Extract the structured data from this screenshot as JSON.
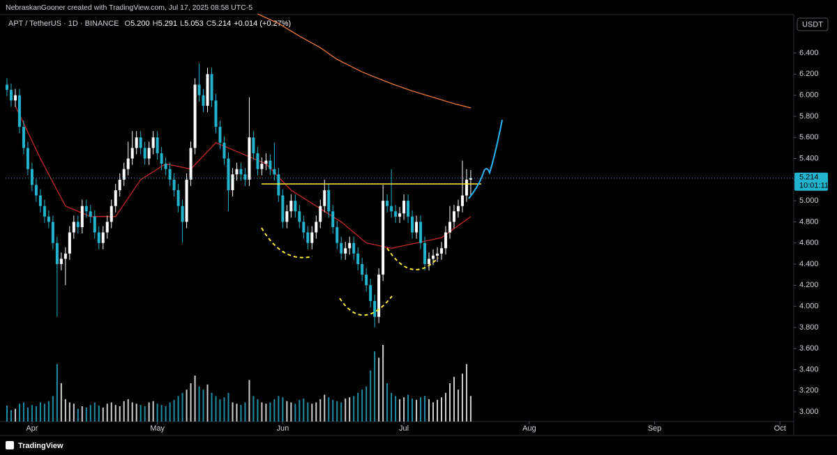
{
  "chart_data": {
    "type": "candlestick",
    "attribution": "NebraskanGooner created with TradingView.com, Jul 17, 2025 08:58 UTC-5",
    "symbol": "APT / TetherUS · 1D · BINANCE",
    "legend": [
      {
        "key": "O",
        "value": "5.200"
      },
      {
        "key": "H",
        "value": "5.291"
      },
      {
        "key": "L",
        "value": "5.053"
      },
      {
        "key": "C",
        "value": "5.214"
      }
    ],
    "change": "+0.014 (+0.27%)",
    "currency": "USDT",
    "countdown": "10:01:11",
    "brand": "TradingView",
    "up_color": "#ffffff",
    "down_color": "#22b3cf",
    "xlim": [
      -0.33,
      187.8
    ],
    "xticks": [
      {
        "value": 6,
        "label": "Apr"
      },
      {
        "value": 36,
        "label": "May"
      },
      {
        "value": 66,
        "label": "Jun"
      },
      {
        "value": 95,
        "label": "Jul"
      },
      {
        "value": 125,
        "label": "Aug"
      },
      {
        "value": 155,
        "label": "Sep"
      },
      {
        "value": 185,
        "label": "Oct"
      }
    ],
    "ylim": [
      2.908,
      6.77
    ],
    "yticks": [
      {
        "value": 3.0,
        "label": "3.000"
      },
      {
        "value": 3.2,
        "label": "3.200"
      },
      {
        "value": 3.4,
        "label": "3.400"
      },
      {
        "value": 3.6,
        "label": "3.600"
      },
      {
        "value": 3.8,
        "label": "3.800"
      },
      {
        "value": 4.0,
        "label": "4.000"
      },
      {
        "value": 4.2,
        "label": "4.200"
      },
      {
        "value": 4.4,
        "label": "4.400"
      },
      {
        "value": 4.6,
        "label": "4.600"
      },
      {
        "value": 4.8,
        "label": "4.800"
      },
      {
        "value": 5.0,
        "label": "5.000"
      },
      {
        "value": 5.2,
        "label": "5.200"
      },
      {
        "value": 5.4,
        "label": "5.400"
      },
      {
        "value": 5.6,
        "label": "5.600"
      },
      {
        "value": 5.8,
        "label": "5.800"
      },
      {
        "value": 6.0,
        "label": "6.000"
      },
      {
        "value": 6.2,
        "label": "6.200"
      },
      {
        "value": 6.4,
        "label": "6.400"
      }
    ],
    "candles": [
      [
        6.1,
        6.16,
        5.99,
        6.05
      ],
      [
        6.05,
        6.11,
        5.89,
        5.95
      ],
      [
        5.95,
        6.06,
        5.89,
        6.0
      ],
      [
        6.0,
        6.06,
        5.64,
        5.7
      ],
      [
        5.7,
        5.76,
        5.44,
        5.5
      ],
      [
        5.5,
        5.56,
        5.24,
        5.3
      ],
      [
        5.3,
        5.36,
        5.09,
        5.15
      ],
      [
        5.15,
        5.21,
        4.99,
        5.05
      ],
      [
        5.05,
        5.11,
        4.89,
        4.95
      ],
      [
        4.95,
        5.01,
        4.79,
        4.85
      ],
      [
        4.85,
        4.91,
        4.74,
        4.8
      ],
      [
        4.8,
        4.86,
        4.54,
        4.6
      ],
      [
        4.6,
        4.66,
        3.9,
        4.4
      ],
      [
        4.4,
        4.51,
        4.34,
        4.45
      ],
      [
        4.45,
        4.56,
        4.2,
        4.5
      ],
      [
        4.5,
        4.76,
        4.44,
        4.7
      ],
      [
        4.7,
        4.86,
        4.64,
        4.8
      ],
      [
        4.8,
        4.86,
        4.69,
        4.75
      ],
      [
        4.75,
        5.01,
        4.69,
        4.95
      ],
      [
        4.95,
        5.01,
        4.84,
        4.9
      ],
      [
        4.9,
        4.96,
        4.79,
        4.85
      ],
      [
        4.85,
        4.91,
        4.64,
        4.7
      ],
      [
        4.7,
        4.76,
        4.54,
        4.6
      ],
      [
        4.6,
        4.76,
        4.54,
        4.7
      ],
      [
        4.7,
        4.86,
        4.64,
        4.8
      ],
      [
        4.8,
        5.01,
        4.74,
        4.95
      ],
      [
        4.95,
        5.16,
        4.89,
        5.1
      ],
      [
        5.1,
        5.26,
        5.04,
        5.2
      ],
      [
        5.2,
        5.36,
        5.14,
        5.3
      ],
      [
        5.3,
        5.56,
        5.24,
        5.4
      ],
      [
        5.4,
        5.66,
        5.34,
        5.5
      ],
      [
        5.5,
        5.66,
        5.44,
        5.6
      ],
      [
        5.6,
        5.66,
        5.44,
        5.5
      ],
      [
        5.5,
        5.56,
        5.34,
        5.4
      ],
      [
        5.4,
        5.56,
        5.34,
        5.5
      ],
      [
        5.5,
        5.66,
        5.44,
        5.6
      ],
      [
        5.6,
        5.66,
        5.39,
        5.45
      ],
      [
        5.45,
        5.51,
        5.29,
        5.35
      ],
      [
        5.35,
        5.41,
        5.24,
        5.3
      ],
      [
        5.3,
        5.36,
        5.14,
        5.2
      ],
      [
        5.2,
        5.26,
        5.04,
        5.1
      ],
      [
        5.1,
        5.16,
        4.89,
        4.95
      ],
      [
        4.95,
        5.01,
        4.6,
        4.8
      ],
      [
        4.8,
        5.26,
        4.74,
        5.2
      ],
      [
        5.2,
        5.56,
        5.14,
        5.5
      ],
      [
        5.5,
        6.16,
        5.44,
        6.1
      ],
      [
        6.1,
        6.3,
        5.94,
        6.0
      ],
      [
        6.0,
        6.06,
        5.84,
        5.9
      ],
      [
        5.9,
        6.26,
        5.84,
        6.2
      ],
      [
        6.2,
        6.26,
        5.89,
        5.95
      ],
      [
        5.95,
        6.01,
        5.64,
        5.7
      ],
      [
        5.7,
        5.76,
        5.49,
        5.55
      ],
      [
        5.55,
        5.61,
        5.34,
        5.4
      ],
      [
        5.4,
        5.46,
        4.9,
        5.1
      ],
      [
        5.1,
        5.31,
        5.04,
        5.25
      ],
      [
        5.25,
        5.36,
        5.19,
        5.3
      ],
      [
        5.3,
        5.36,
        5.19,
        5.25
      ],
      [
        5.25,
        5.31,
        5.14,
        5.2
      ],
      [
        5.2,
        5.98,
        5.14,
        5.6
      ],
      [
        5.6,
        5.66,
        5.39,
        5.45
      ],
      [
        5.45,
        5.51,
        5.24,
        5.3
      ],
      [
        5.3,
        5.41,
        5.24,
        5.35
      ],
      [
        5.35,
        5.45,
        5.29,
        5.38
      ],
      [
        5.38,
        5.44,
        5.24,
        5.3
      ],
      [
        5.3,
        5.55,
        5.19,
        5.25
      ],
      [
        5.25,
        5.31,
        4.99,
        5.05
      ],
      [
        5.05,
        5.11,
        4.74,
        4.8
      ],
      [
        4.8,
        4.96,
        4.74,
        4.9
      ],
      [
        4.9,
        5.06,
        4.84,
        5.0
      ],
      [
        5.0,
        5.06,
        4.84,
        4.9
      ],
      [
        4.9,
        4.96,
        4.74,
        4.8
      ],
      [
        4.8,
        4.86,
        4.64,
        4.7
      ],
      [
        4.7,
        4.76,
        4.54,
        4.6
      ],
      [
        4.6,
        4.76,
        4.54,
        4.7
      ],
      [
        4.7,
        4.86,
        4.64,
        4.8
      ],
      [
        4.8,
        5.01,
        4.74,
        4.95
      ],
      [
        4.95,
        5.2,
        4.89,
        5.1
      ],
      [
        5.1,
        5.16,
        4.84,
        4.9
      ],
      [
        4.9,
        4.96,
        4.69,
        4.75
      ],
      [
        4.75,
        4.81,
        4.54,
        4.6
      ],
      [
        4.6,
        4.66,
        4.44,
        4.5
      ],
      [
        4.5,
        4.61,
        4.44,
        4.55
      ],
      [
        4.55,
        4.66,
        4.49,
        4.6
      ],
      [
        4.6,
        4.66,
        4.44,
        4.5
      ],
      [
        4.5,
        4.56,
        4.34,
        4.4
      ],
      [
        4.4,
        4.46,
        4.24,
        4.3
      ],
      [
        4.3,
        4.36,
        4.14,
        4.2
      ],
      [
        4.2,
        4.26,
        3.99,
        4.05
      ],
      [
        4.05,
        4.11,
        3.8,
        3.9
      ],
      [
        3.9,
        4.36,
        3.84,
        4.3
      ],
      [
        4.3,
        5.15,
        4.24,
        5.0
      ],
      [
        5.0,
        5.06,
        4.89,
        4.95
      ],
      [
        4.95,
        5.3,
        4.84,
        4.9
      ],
      [
        4.9,
        4.96,
        4.79,
        4.85
      ],
      [
        4.85,
        4.94,
        4.79,
        4.88
      ],
      [
        4.88,
        5.06,
        4.82,
        5.0
      ],
      [
        5.0,
        5.06,
        4.79,
        4.85
      ],
      [
        4.85,
        4.91,
        4.64,
        4.7
      ],
      [
        4.7,
        4.86,
        4.64,
        4.8
      ],
      [
        4.8,
        4.86,
        4.54,
        4.6
      ],
      [
        4.6,
        4.66,
        4.34,
        4.4
      ],
      [
        4.4,
        4.51,
        4.34,
        4.45
      ],
      [
        4.45,
        4.54,
        4.39,
        4.48
      ],
      [
        4.48,
        4.56,
        4.42,
        4.5
      ],
      [
        4.5,
        4.61,
        4.44,
        4.55
      ],
      [
        4.55,
        4.76,
        4.49,
        4.7
      ],
      [
        4.7,
        4.95,
        4.64,
        4.8
      ],
      [
        4.8,
        4.96,
        4.74,
        4.9
      ],
      [
        4.9,
        5.01,
        4.84,
        4.95
      ],
      [
        4.95,
        5.38,
        4.89,
        5.05
      ],
      [
        5.05,
        5.3,
        4.99,
        5.2
      ],
      [
        5.2,
        5.291,
        5.053,
        5.214
      ]
    ],
    "volume": [
      25,
      18,
      20,
      28,
      30,
      22,
      26,
      24,
      30,
      28,
      32,
      40,
      90,
      60,
      35,
      30,
      28,
      20,
      24,
      22,
      26,
      30,
      25,
      22,
      28,
      30,
      26,
      24,
      32,
      35,
      30,
      28,
      26,
      24,
      30,
      32,
      28,
      26,
      24,
      30,
      34,
      40,
      45,
      50,
      60,
      72,
      55,
      50,
      58,
      45,
      40,
      35,
      38,
      45,
      30,
      28,
      26,
      30,
      65,
      40,
      35,
      30,
      28,
      30,
      35,
      40,
      38,
      32,
      30,
      28,
      34,
      36,
      30,
      28,
      30,
      35,
      42,
      38,
      34,
      32,
      30,
      36,
      38,
      40,
      45,
      50,
      55,
      80,
      110,
      100,
      120,
      60,
      45,
      40,
      35,
      38,
      42,
      36,
      34,
      38,
      40,
      35,
      30,
      34,
      38,
      45,
      60,
      70,
      50,
      75,
      90,
      40
    ],
    "lines": [
      {
        "color": "#e8773a",
        "x": [
          60,
          65,
          70,
          75,
          79,
          85,
          92,
          97,
          102,
          107,
          111
        ],
        "values": [
          6.77,
          6.68,
          6.56,
          6.45,
          6.34,
          6.22,
          6.11,
          6.04,
          5.98,
          5.92,
          5.88
        ]
      },
      {
        "color": "#c62828",
        "x": [
          2,
          8,
          14,
          20,
          26,
          32,
          38,
          44,
          50,
          56,
          62,
          68,
          74,
          80,
          86,
          92,
          98,
          104,
          111
        ],
        "values": [
          5.9,
          5.4,
          4.95,
          4.85,
          4.85,
          5.2,
          5.35,
          5.3,
          5.55,
          5.45,
          5.35,
          5.1,
          4.95,
          4.8,
          4.6,
          4.55,
          4.6,
          4.65,
          4.85
        ]
      }
    ]
  }
}
